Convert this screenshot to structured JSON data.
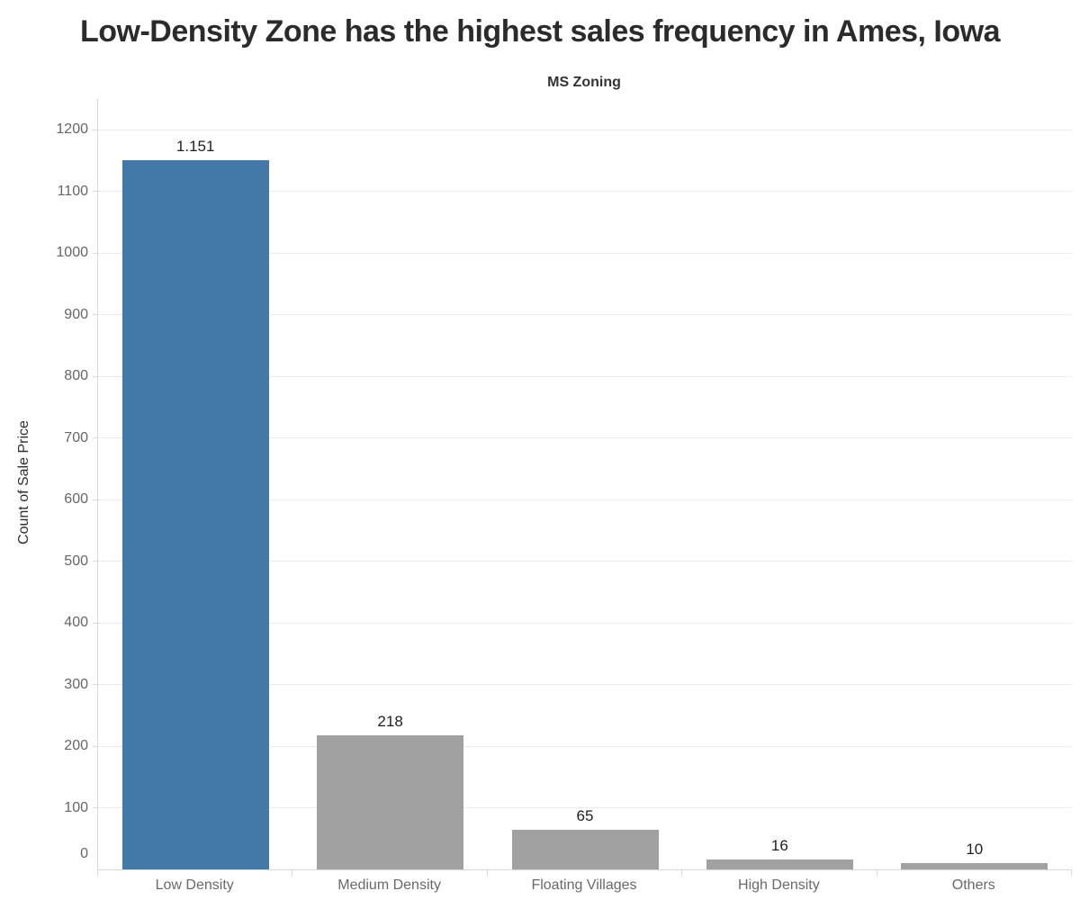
{
  "title": "Low-Density Zone has the highest sales frequency in Ames, Iowa",
  "chart_data": {
    "type": "bar",
    "title": "Low-Density Zone has the highest sales frequency in Ames, Iowa",
    "column_header": "MS Zoning",
    "ylabel": "Count of Sale Price",
    "xlabel": "",
    "categories": [
      "Low Density",
      "Medium Density",
      "Floating Villages",
      "High Density",
      "Others"
    ],
    "values": [
      1151,
      218,
      65,
      16,
      10
    ],
    "value_labels": [
      "1.151",
      "218",
      "65",
      "16",
      "10"
    ],
    "yticks": [
      0,
      100,
      200,
      300,
      400,
      500,
      600,
      700,
      800,
      900,
      1000,
      1100,
      1200
    ],
    "ylim": [
      0,
      1250
    ],
    "grid": "horizontal",
    "legend": "none",
    "bar_colors": [
      "#4379a8",
      "#a1a1a1",
      "#a1a1a1",
      "#a1a1a1",
      "#a1a1a1"
    ],
    "highlight_color": "#4379a8",
    "default_color": "#a1a1a1"
  },
  "colors": {
    "background": "#ffffff",
    "title_text": "#2b2b2b",
    "axis_line": "#d8d8d8",
    "gridline": "#ebebeb",
    "tick_label": "#666666",
    "category_label": "#696969",
    "value_label": "#1f1f1f"
  }
}
